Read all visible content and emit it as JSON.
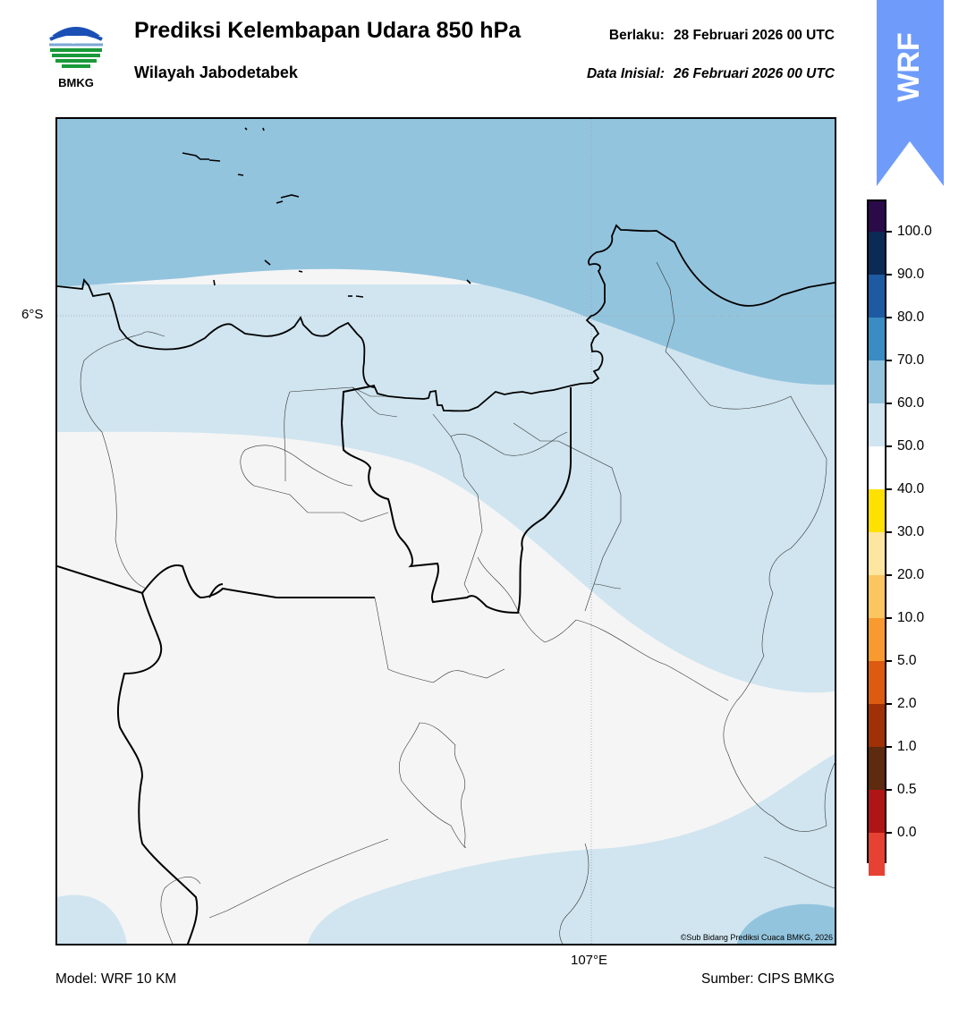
{
  "header": {
    "title": "Prediksi Kelembapan Udara 850 hPa",
    "region": "Wilayah Jabodetabek",
    "valid_label": "Berlaku:",
    "valid_value": "28 Februari 2026 00 UTC",
    "init_label": "Data Inisial:",
    "init_value": "26 Februari 2026 00 UTC"
  },
  "logo": {
    "text": "BMKG",
    "icon": "bmkg-logo-icon"
  },
  "badge": {
    "text": "WRF",
    "color": "#6f9cfb",
    "icon": "arrow-up-icon"
  },
  "map": {
    "lat_label": "6°S",
    "lon_label": "107°E",
    "credit": "©Sub Bidang Prediksi Cuaca BMKG, 2026",
    "colors": {
      "50-60": "#d0e5f0",
      "40-50": "#f5f5f5",
      "60-70": "#93c4de"
    }
  },
  "colorbar": {
    "labels": [
      "100.0",
      "90.0",
      "80.0",
      "70.0",
      "60.0",
      "50.0",
      "40.0",
      "30.0",
      "20.0",
      "10.0",
      "5.0",
      "2.0",
      "1.0",
      "0.5",
      "0.0"
    ],
    "colors": [
      "#2b0a4a",
      "#0b2a55",
      "#1d5aa2",
      "#3a8dc2",
      "#93c4de",
      "#d0e5f0",
      "#ffffff",
      "#ffe100",
      "#fde6a0",
      "#fbc660",
      "#f99a30",
      "#dc5b10",
      "#a03005",
      "#5e2a10",
      "#b01515",
      "#e64132"
    ]
  },
  "footer": {
    "model": "Model: WRF 10 KM",
    "source": "Sumber: CIPS BMKG"
  }
}
